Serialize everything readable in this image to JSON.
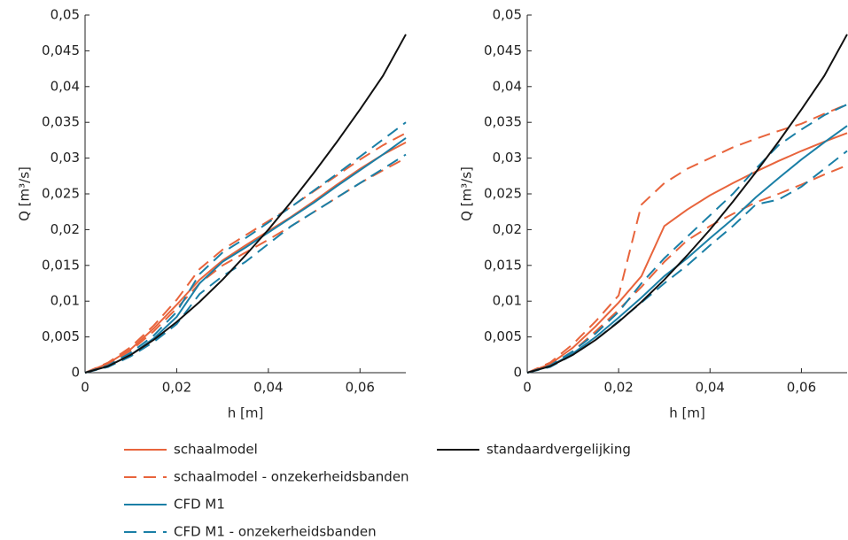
{
  "chart_data": [
    {
      "type": "line",
      "xlabel": "h [m]",
      "ylabel": "Q [m³/s]",
      "xlim": [
        0,
        0.07
      ],
      "ylim": [
        0,
        0.05
      ],
      "xticks": [
        0,
        {
          "value": 0.02,
          "label": "0,02"
        },
        {
          "value": 0.04,
          "label": "0,04"
        },
        {
          "value": 0.06,
          "label": "0,06"
        }
      ],
      "yticks": [
        0,
        {
          "value": 0.005,
          "label": "0,005"
        },
        {
          "value": 0.01,
          "label": "0,01"
        },
        {
          "value": 0.015,
          "label": "0,015"
        },
        {
          "value": 0.02,
          "label": "0,02"
        },
        {
          "value": 0.025,
          "label": "0,025"
        },
        {
          "value": 0.03,
          "label": "0,03"
        },
        {
          "value": 0.035,
          "label": "0,035"
        },
        {
          "value": 0.04,
          "label": "0,04"
        },
        {
          "value": 0.045,
          "label": "0,045"
        },
        {
          "value": 0.05,
          "label": "0,05"
        }
      ],
      "x": [
        0,
        0.005,
        0.01,
        0.015,
        0.02,
        0.025,
        0.03,
        0.035,
        0.04,
        0.045,
        0.05,
        0.055,
        0.06,
        0.065,
        0.07
      ],
      "series": [
        {
          "name": "schaalmodel",
          "color": "#e8643c",
          "dash": false,
          "values": [
            0,
            0.0013,
            0.0033,
            0.0062,
            0.0095,
            0.013,
            0.0157,
            0.0178,
            0.0198,
            0.0218,
            0.024,
            0.0263,
            0.0285,
            0.0305,
            0.0322
          ]
        },
        {
          "name": "schaalmodel - onzekerheidsbanden",
          "color": "#e8643c",
          "dash": true,
          "lower": [
            0,
            0.0012,
            0.0031,
            0.0058,
            0.009,
            0.0125,
            0.015,
            0.0168,
            0.0186,
            0.0205,
            0.0225,
            0.0245,
            0.0265,
            0.0283,
            0.03
          ],
          "upper": [
            0,
            0.0014,
            0.0036,
            0.0066,
            0.0102,
            0.0145,
            0.0172,
            0.0192,
            0.0212,
            0.0232,
            0.0254,
            0.0276,
            0.0298,
            0.0318,
            0.0335
          ]
        },
        {
          "name": "CFD M1",
          "color": "#1a7fa6",
          "dash": false,
          "values": [
            0,
            0.0009,
            0.0025,
            0.0048,
            0.0078,
            0.0125,
            0.0155,
            0.0175,
            0.0196,
            0.0217,
            0.0238,
            0.0261,
            0.0283,
            0.0305,
            0.0328
          ]
        },
        {
          "name": "CFD M1 - onzekerheidsbanden",
          "color": "#1a7fa6",
          "dash": true,
          "lower": [
            0,
            0.0008,
            0.0023,
            0.0043,
            0.0068,
            0.011,
            0.0135,
            0.0155,
            0.018,
            0.0205,
            0.0225,
            0.0245,
            0.0265,
            0.0285,
            0.0305
          ],
          "upper": [
            0,
            0.001,
            0.0028,
            0.0052,
            0.0085,
            0.0138,
            0.0168,
            0.0188,
            0.021,
            0.0232,
            0.0255,
            0.0278,
            0.0302,
            0.0326,
            0.035
          ]
        },
        {
          "name": "standaardvergelijking",
          "color": "#111111",
          "dash": false,
          "values": [
            0,
            0.0009,
            0.0025,
            0.0046,
            0.0071,
            0.0099,
            0.013,
            0.0164,
            0.02,
            0.0239,
            0.028,
            0.0323,
            0.0368,
            0.0415,
            0.0473
          ]
        }
      ]
    },
    {
      "type": "line",
      "xlabel": "h [m]",
      "ylabel": "Q [m³/s]",
      "xlim": [
        0,
        0.07
      ],
      "ylim": [
        0,
        0.05
      ],
      "xticks": [
        0,
        {
          "value": 0.02,
          "label": "0,02"
        },
        {
          "value": 0.04,
          "label": "0,04"
        },
        {
          "value": 0.06,
          "label": "0,06"
        }
      ],
      "yticks": [
        0,
        {
          "value": 0.005,
          "label": "0,005"
        },
        {
          "value": 0.01,
          "label": "0,01"
        },
        {
          "value": 0.015,
          "label": "0,015"
        },
        {
          "value": 0.02,
          "label": "0,02"
        },
        {
          "value": 0.025,
          "label": "0,025"
        },
        {
          "value": 0.03,
          "label": "0,03"
        },
        {
          "value": 0.035,
          "label": "0,035"
        },
        {
          "value": 0.04,
          "label": "0,04"
        },
        {
          "value": 0.045,
          "label": "0,045"
        },
        {
          "value": 0.05,
          "label": "0,05"
        }
      ],
      "x": [
        0,
        0.005,
        0.01,
        0.015,
        0.02,
        0.025,
        0.03,
        0.035,
        0.04,
        0.045,
        0.05,
        0.055,
        0.06,
        0.065,
        0.07
      ],
      "series": [
        {
          "color": "#e8643c",
          "dash": false,
          "values": [
            0,
            0.0012,
            0.0035,
            0.0065,
            0.0098,
            0.0135,
            0.0205,
            0.0228,
            0.0248,
            0.0265,
            0.0281,
            0.0296,
            0.031,
            0.0323,
            0.0335
          ]
        },
        {
          "color": "#e8643c",
          "dash": true,
          "lower": [
            0,
            0.001,
            0.003,
            0.0058,
            0.0088,
            0.012,
            0.0155,
            0.0185,
            0.0205,
            0.0222,
            0.0238,
            0.025,
            0.0263,
            0.0277,
            0.029
          ],
          "upper": [
            0,
            0.0014,
            0.004,
            0.0072,
            0.0108,
            0.0235,
            0.0265,
            0.0285,
            0.03,
            0.0315,
            0.0327,
            0.0338,
            0.0348,
            0.0362,
            0.0375
          ]
        },
        {
          "color": "#1a7fa6",
          "dash": false,
          "values": [
            0,
            0.0009,
            0.0027,
            0.005,
            0.0077,
            0.0105,
            0.0135,
            0.016,
            0.0188,
            0.0215,
            0.0245,
            0.0272,
            0.0298,
            0.0322,
            0.0345
          ]
        },
        {
          "color": "#1a7fa6",
          "dash": true,
          "lower": [
            0,
            0.0008,
            0.0025,
            0.0046,
            0.0072,
            0.0098,
            0.0125,
            0.015,
            0.0178,
            0.0205,
            0.0235,
            0.0242,
            0.026,
            0.0285,
            0.031
          ],
          "upper": [
            0,
            0.001,
            0.003,
            0.0055,
            0.0085,
            0.0125,
            0.016,
            0.019,
            0.022,
            0.025,
            0.0285,
            0.0318,
            0.034,
            0.036,
            0.0375
          ]
        },
        {
          "color": "#111111",
          "dash": false,
          "values": [
            0,
            0.0009,
            0.0025,
            0.0046,
            0.0071,
            0.0099,
            0.013,
            0.0164,
            0.02,
            0.0239,
            0.028,
            0.0323,
            0.0368,
            0.0415,
            0.0473
          ]
        }
      ]
    }
  ]
}
